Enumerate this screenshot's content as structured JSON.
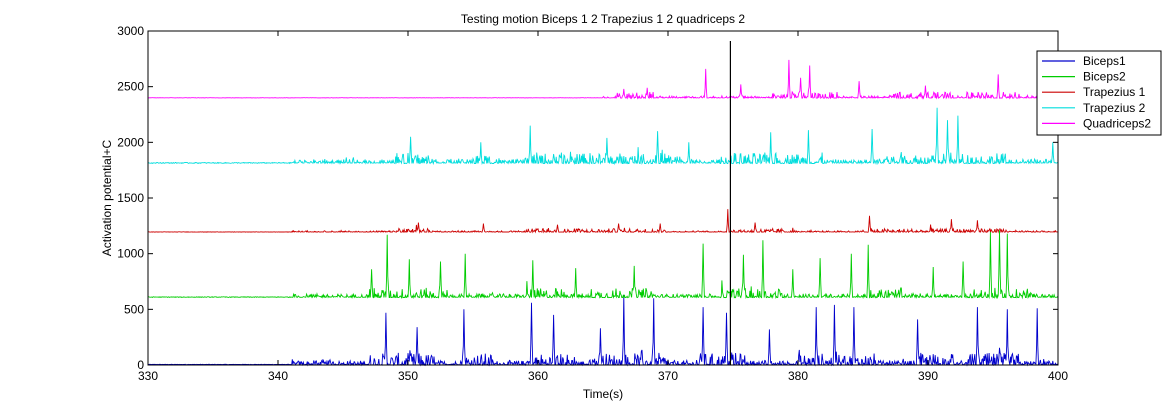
{
  "chart_data": {
    "type": "line",
    "title": "Testing motion Biceps 1 2 Trapezius 1 2 quadriceps 2",
    "xlabel": "Time(s)",
    "ylabel": "Activation potential+C",
    "xlim": [
      330,
      400
    ],
    "ylim": [
      0,
      3000
    ],
    "xticks": [
      330,
      340,
      350,
      360,
      370,
      380,
      390,
      400
    ],
    "xtick_labels": [
      "330",
      "340",
      "350",
      "360",
      "370",
      "380",
      "390",
      "400"
    ],
    "yticks": [
      0,
      500,
      1000,
      1500,
      2000,
      2500,
      3000
    ],
    "ytick_labels": [
      "0",
      "500",
      "1000",
      "1500",
      "2000",
      "2500",
      "3000"
    ],
    "grid": false,
    "legend_position": "top-right",
    "vertical_marker": {
      "x": 374.8,
      "y_range": [
        0,
        2910
      ]
    },
    "series": [
      {
        "name": "Biceps1",
        "color": "#0000cc",
        "offset": 0,
        "baseline": 5,
        "quiet_noise": 4,
        "onset": 341,
        "active_noise": 50,
        "active_windows": [
          [
            347,
            352
          ],
          [
            354,
            356.5
          ],
          [
            359,
            363
          ],
          [
            364,
            370
          ],
          [
            372,
            376
          ],
          [
            380,
            386
          ],
          [
            389,
            392
          ],
          [
            393,
            397
          ]
        ],
        "peaks": [
          [
            348.3,
            470
          ],
          [
            350.7,
            340
          ],
          [
            354.3,
            500
          ],
          [
            359.5,
            560
          ],
          [
            361.2,
            450
          ],
          [
            364.8,
            330
          ],
          [
            366.6,
            630
          ],
          [
            368.9,
            600
          ],
          [
            372.7,
            520
          ],
          [
            374.5,
            470
          ],
          [
            377.8,
            320
          ],
          [
            381.4,
            520
          ],
          [
            382.8,
            540
          ],
          [
            384.3,
            520
          ],
          [
            389.2,
            410
          ],
          [
            393.8,
            520
          ],
          [
            396.1,
            500
          ],
          [
            398.4,
            510
          ]
        ]
      },
      {
        "name": "Biceps2",
        "color": "#00cc00",
        "offset": 600,
        "baseline": 610,
        "quiet_noise": 6,
        "onset": 341,
        "active_noise": 40,
        "active_windows": [
          [
            347,
            353
          ],
          [
            359,
            362
          ],
          [
            364,
            369
          ],
          [
            374,
            379
          ],
          [
            385,
            388
          ],
          [
            393,
            398
          ]
        ],
        "peaks": [
          [
            347.2,
            860
          ],
          [
            348.4,
            1170
          ],
          [
            350.1,
            950
          ],
          [
            352.5,
            930
          ],
          [
            354.4,
            1000
          ],
          [
            359.6,
            940
          ],
          [
            362.9,
            870
          ],
          [
            367.4,
            890
          ],
          [
            372.7,
            1090
          ],
          [
            375.8,
            990
          ],
          [
            377.3,
            1120
          ],
          [
            379.6,
            860
          ],
          [
            381.7,
            960
          ],
          [
            384.1,
            1000
          ],
          [
            385.4,
            1080
          ],
          [
            390.4,
            880
          ],
          [
            392.7,
            930
          ],
          [
            394.8,
            1200
          ],
          [
            395.5,
            1210
          ],
          [
            396.1,
            1180
          ]
        ]
      },
      {
        "name": "Trapezius 1",
        "color": "#cc0000",
        "offset": 1200,
        "baseline": 1195,
        "quiet_noise": 3,
        "onset": 341,
        "active_noise": 15,
        "active_windows": [
          [
            349,
            352
          ],
          [
            359,
            370
          ],
          [
            375,
            380
          ],
          [
            385,
            396
          ]
        ],
        "peaks": [
          [
            350.8,
            1280
          ],
          [
            355.8,
            1270
          ],
          [
            361.5,
            1260
          ],
          [
            366.2,
            1270
          ],
          [
            369.4,
            1270
          ],
          [
            374.6,
            1400
          ],
          [
            376.7,
            1280
          ],
          [
            385.5,
            1340
          ],
          [
            391.8,
            1310
          ],
          [
            393.8,
            1300
          ]
        ]
      },
      {
        "name": "Trapezius 2",
        "color": "#00dddd",
        "offset": 1800,
        "baseline": 1815,
        "quiet_noise": 8,
        "onset": 341,
        "active_noise": 45,
        "active_windows": [
          [
            349,
            352
          ],
          [
            355,
            357
          ],
          [
            359,
            371
          ],
          [
            374,
            382
          ],
          [
            386,
            396
          ]
        ],
        "peaks": [
          [
            350.2,
            2050
          ],
          [
            355.6,
            2000
          ],
          [
            359.4,
            2150
          ],
          [
            365.3,
            2040
          ],
          [
            369.2,
            2100
          ],
          [
            371.6,
            2000
          ],
          [
            377.9,
            2090
          ],
          [
            380.8,
            2110
          ],
          [
            385.7,
            2120
          ],
          [
            390.7,
            2310
          ],
          [
            391.5,
            2200
          ],
          [
            392.3,
            2240
          ],
          [
            399.6,
            2000
          ]
        ]
      },
      {
        "name": "Quadriceps2",
        "color": "#ff00ff",
        "offset": 2400,
        "baseline": 2400,
        "quiet_noise": 2,
        "onset": 365,
        "active_noise": 25,
        "active_windows": [
          [
            366,
            369
          ],
          [
            378,
            383
          ],
          [
            387,
            392
          ],
          [
            393,
            397
          ]
        ],
        "peaks": [
          [
            366.6,
            2480
          ],
          [
            368.4,
            2490
          ],
          [
            372.9,
            2660
          ],
          [
            375.6,
            2520
          ],
          [
            379.3,
            2740
          ],
          [
            380.2,
            2580
          ],
          [
            380.9,
            2690
          ],
          [
            384.7,
            2550
          ],
          [
            389.8,
            2510
          ],
          [
            395.4,
            2610
          ]
        ]
      }
    ]
  }
}
